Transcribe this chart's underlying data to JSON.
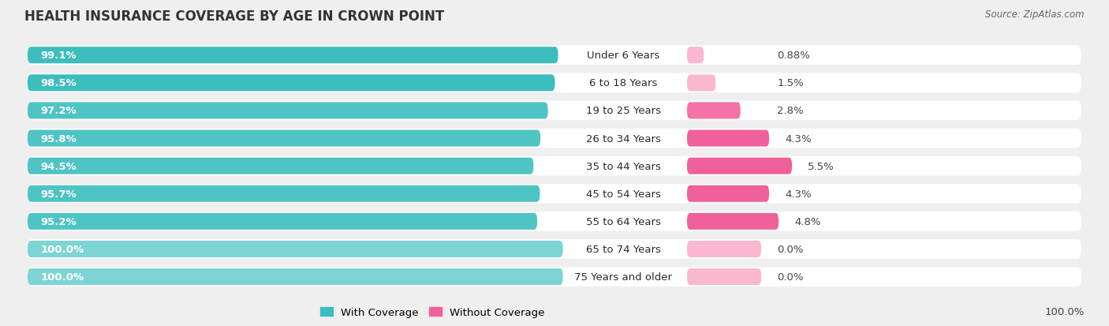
{
  "title": "HEALTH INSURANCE COVERAGE BY AGE IN CROWN POINT",
  "source": "Source: ZipAtlas.com",
  "categories": [
    "Under 6 Years",
    "6 to 18 Years",
    "19 to 25 Years",
    "26 to 34 Years",
    "35 to 44 Years",
    "45 to 54 Years",
    "55 to 64 Years",
    "65 to 74 Years",
    "75 Years and older"
  ],
  "with_coverage": [
    99.1,
    98.5,
    97.2,
    95.8,
    94.5,
    95.7,
    95.2,
    100.0,
    100.0
  ],
  "without_coverage": [
    0.88,
    1.5,
    2.8,
    4.3,
    5.5,
    4.3,
    4.8,
    0.0,
    0.0
  ],
  "with_coverage_labels": [
    "99.1%",
    "98.5%",
    "97.2%",
    "95.8%",
    "94.5%",
    "95.7%",
    "95.2%",
    "100.0%",
    "100.0%"
  ],
  "without_coverage_labels": [
    "0.88%",
    "1.5%",
    "2.8%",
    "4.3%",
    "5.5%",
    "4.3%",
    "4.8%",
    "0.0%",
    "0.0%"
  ],
  "color_with_dark": "#3dbdbd",
  "color_with_medium": "#4ec4c4",
  "color_with_light": "#7dd4d4",
  "color_without_dark": "#f0609a",
  "color_without_medium": "#f472a8",
  "color_without_light": "#f9b8cf",
  "background_color": "#efefef",
  "row_bg_color": "#ffffff",
  "title_fontsize": 12,
  "label_fontsize": 9.5,
  "source_fontsize": 8.5,
  "legend_fontsize": 9.5,
  "bottom_label": "100.0%"
}
